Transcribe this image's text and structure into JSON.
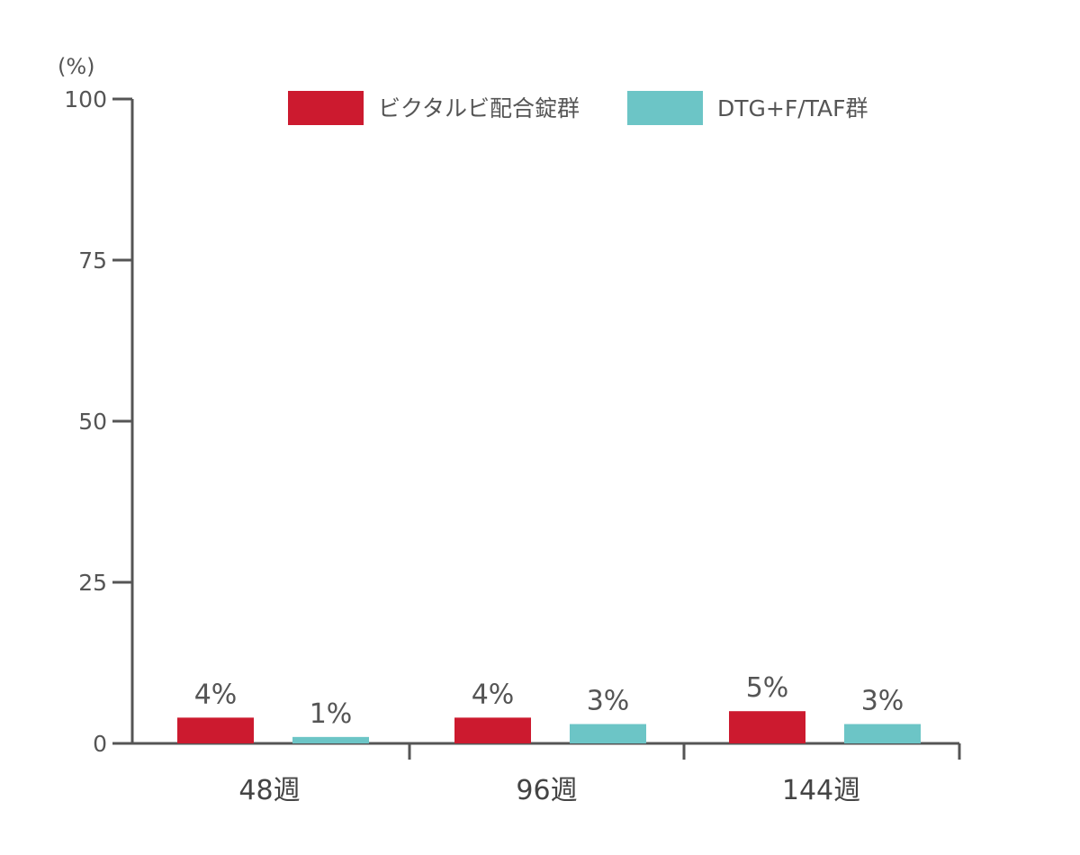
{
  "chart_data": {
    "type": "bar",
    "unit_label": "(%)",
    "categories": [
      "48週",
      "96週",
      "144週"
    ],
    "series": [
      {
        "name": "ビクタルビ配合錠群",
        "color": "#cc1a2f",
        "values": [
          4,
          4,
          5
        ],
        "labels": [
          "4%",
          "4%",
          "5%"
        ]
      },
      {
        "name": "DTG+F/TAF群",
        "color": "#6cc5c6",
        "values": [
          1,
          3,
          3
        ],
        "labels": [
          "1%",
          "3%",
          "3%"
        ]
      }
    ],
    "ylim": [
      0,
      100
    ],
    "yticks": [
      0,
      25,
      50,
      75,
      100
    ],
    "ytick_labels": [
      "0",
      "25",
      "50",
      "75",
      "100"
    ],
    "grid": false,
    "legend_position": "top"
  }
}
